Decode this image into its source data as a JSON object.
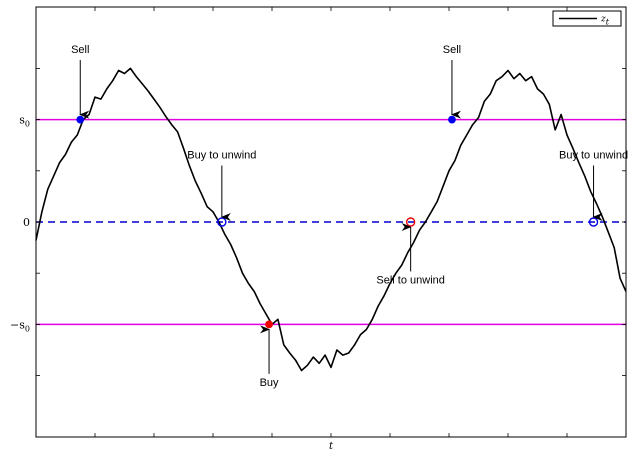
{
  "chart_data": {
    "type": "line",
    "title": "",
    "xlabel": "t",
    "ylabel": "",
    "xlim": [
      0,
      100
    ],
    "ylim": [
      -2.1,
      2.1
    ],
    "grid": false,
    "legend": {
      "placement": "top-right",
      "entries": [
        {
          "label": "z_t",
          "color": "#000000"
        }
      ]
    },
    "yticks": [
      {
        "value": 1,
        "label": "s_0"
      },
      {
        "value": 0,
        "label": "0"
      },
      {
        "value": -1,
        "label": "−s_0"
      }
    ],
    "hlines": [
      {
        "name": "s0",
        "y": 1,
        "color": "#e000e0",
        "style": "solid"
      },
      {
        "name": "zero",
        "y": 0,
        "color": "#0000cc",
        "style": "dashed"
      },
      {
        "name": "neg-s0",
        "y": -1,
        "color": "#e000e0",
        "style": "solid"
      }
    ],
    "series": [
      {
        "name": "z_t",
        "color": "#000000",
        "x": [
          0,
          1,
          2,
          3,
          4,
          5,
          6,
          7,
          8,
          9,
          10,
          11,
          12,
          13,
          14,
          15,
          16,
          17,
          18,
          19,
          20,
          21,
          22,
          23,
          24,
          25,
          26,
          27,
          28,
          29,
          30,
          31,
          32,
          33,
          34,
          35,
          36,
          37,
          38,
          39,
          40,
          41,
          42,
          43,
          44,
          45,
          46,
          47,
          48,
          49,
          50,
          51,
          52,
          53,
          54,
          55,
          56,
          57,
          58,
          59,
          60,
          61,
          62,
          63,
          64,
          65,
          66,
          67,
          68,
          69,
          70,
          71,
          72,
          73,
          74,
          75,
          76,
          77,
          78,
          79,
          80,
          81,
          82,
          83,
          84,
          85,
          86,
          87,
          88,
          89,
          90,
          91,
          92,
          93,
          94,
          95,
          96,
          97,
          98,
          99,
          100
        ],
        "y": [
          -0.18,
          0.1,
          0.32,
          0.45,
          0.58,
          0.66,
          0.78,
          0.85,
          1.0,
          1.05,
          1.22,
          1.2,
          1.3,
          1.38,
          1.48,
          1.45,
          1.5,
          1.42,
          1.35,
          1.28,
          1.2,
          1.12,
          1.03,
          0.95,
          0.88,
          0.72,
          0.55,
          0.4,
          0.28,
          0.15,
          0.1,
          0.0,
          -0.12,
          -0.22,
          -0.35,
          -0.5,
          -0.6,
          -0.68,
          -0.8,
          -0.9,
          -1.0,
          -0.95,
          -1.2,
          -1.28,
          -1.35,
          -1.45,
          -1.4,
          -1.32,
          -1.38,
          -1.3,
          -1.42,
          -1.25,
          -1.3,
          -1.28,
          -1.2,
          -1.1,
          -1.05,
          -0.95,
          -0.82,
          -0.72,
          -0.6,
          -0.5,
          -0.42,
          -0.3,
          -0.2,
          -0.08,
          0.0,
          0.1,
          0.2,
          0.35,
          0.5,
          0.6,
          0.75,
          0.85,
          0.95,
          1.02,
          1.18,
          1.25,
          1.38,
          1.42,
          1.48,
          1.4,
          1.45,
          1.38,
          1.42,
          1.3,
          1.25,
          1.15,
          0.9,
          1.05,
          0.85,
          0.72,
          0.58,
          0.45,
          0.3,
          0.18,
          0.05,
          -0.1,
          -0.25,
          -0.55,
          -0.68
        ]
      }
    ],
    "markers": [
      {
        "x": 7.5,
        "y": 1,
        "color": "#0000ee",
        "filled": true
      },
      {
        "x": 31.5,
        "y": 0,
        "color": "#0000ee",
        "filled": false
      },
      {
        "x": 39.5,
        "y": -1,
        "color": "#ee0000",
        "filled": true
      },
      {
        "x": 63.5,
        "y": 0,
        "color": "#ee0000",
        "filled": false
      },
      {
        "x": 70.5,
        "y": 1,
        "color": "#0000ee",
        "filled": true
      },
      {
        "x": 94.5,
        "y": 0,
        "color": "#0000ee",
        "filled": false
      }
    ],
    "annotations": [
      {
        "text": "Sell",
        "x": 7.5,
        "y": 1,
        "text_y": 1.65
      },
      {
        "text": "Buy to unwind",
        "x": 31.5,
        "y": 0,
        "text_y": 0.62
      },
      {
        "text": "Buy",
        "x": 39.5,
        "y": -1,
        "text_y": -1.6
      },
      {
        "text": "Sell to unwind",
        "x": 63.5,
        "y": 0,
        "text_y": -0.6
      },
      {
        "text": "Sell",
        "x": 70.5,
        "y": 1,
        "text_y": 1.65
      },
      {
        "text": "Buy to unwind",
        "x": 94.5,
        "y": 0,
        "text_y": 0.62
      }
    ]
  }
}
